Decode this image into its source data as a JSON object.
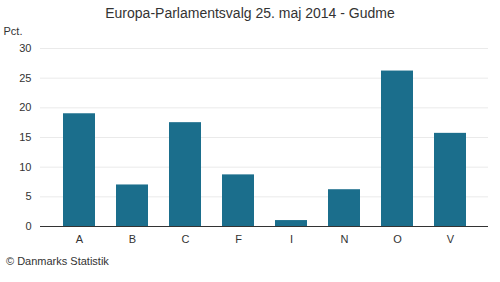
{
  "chart_data": {
    "type": "bar",
    "title": "Europa-Parlamentsvalg 25. maj 2014 - Gudme",
    "categories": [
      "A",
      "B",
      "C",
      "F",
      "I",
      "N",
      "O",
      "V"
    ],
    "values": [
      19.0,
      7.0,
      17.5,
      8.7,
      1.0,
      6.2,
      26.2,
      15.7
    ],
    "color": "#1b6e8c",
    "ylabel": "Pct.",
    "ylim": [
      0,
      30
    ],
    "yticks": [
      0,
      5,
      10,
      15,
      20,
      25,
      30
    ],
    "grid": true,
    "annotations": [
      "© Danmarks Statistik"
    ]
  }
}
